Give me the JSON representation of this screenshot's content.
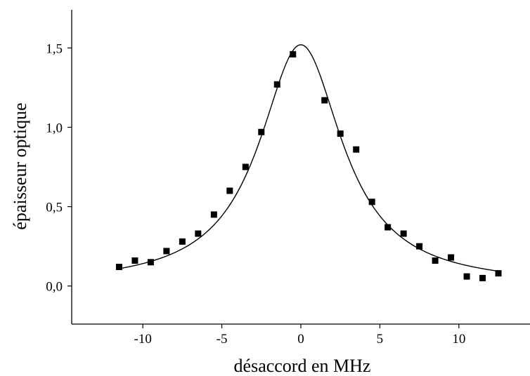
{
  "chart_data": {
    "type": "scatter",
    "title": "",
    "xlabel": "désaccord en MHz",
    "ylabel": "épaisseur optique",
    "xlim": [
      -14.5,
      14.5
    ],
    "ylim": [
      -0.24,
      1.74
    ],
    "x_ticks": [
      -10,
      -5,
      0,
      5,
      10
    ],
    "x_tick_labels": [
      "-10",
      "-5",
      "0",
      "5",
      "10"
    ],
    "y_ticks": [
      0.0,
      0.5,
      1.0,
      1.5
    ],
    "y_tick_labels": [
      "0,0",
      "0,5",
      "1,0",
      "1,5"
    ],
    "grid": false,
    "series": [
      {
        "kind": "points",
        "marker": "square",
        "color": "#000000",
        "x": [
          -11.5,
          -10.5,
          -9.5,
          -8.5,
          -7.5,
          -6.5,
          -5.5,
          -4.5,
          -3.5,
          -2.5,
          -1.5,
          -0.5,
          1.5,
          2.5,
          3.5,
          4.5,
          5.5,
          6.5,
          7.5,
          8.5,
          9.5,
          10.5,
          11.5,
          12.5
        ],
        "y": [
          0.12,
          0.16,
          0.15,
          0.22,
          0.28,
          0.33,
          0.45,
          0.6,
          0.75,
          0.97,
          1.27,
          1.46,
          1.17,
          0.96,
          0.86,
          0.53,
          0.37,
          0.33,
          0.25,
          0.16,
          0.18,
          0.06,
          0.05,
          0.08
        ]
      },
      {
        "kind": "curve",
        "shape": "lorentzian",
        "color": "#000000",
        "amplitude": 1.52,
        "center": 0.0,
        "half_width": 3.2,
        "x_range": [
          -11.5,
          12.5
        ]
      }
    ]
  }
}
